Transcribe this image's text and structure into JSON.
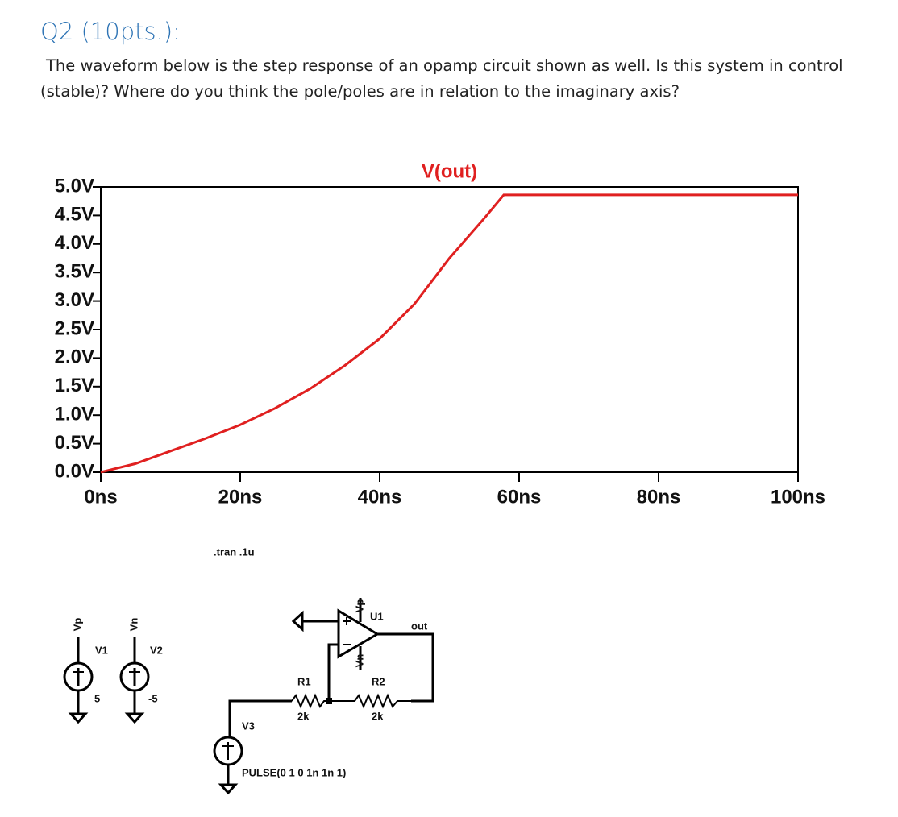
{
  "question": {
    "title": "Q2 (10pts.):",
    "text": "The waveform below is the step response of an opamp circuit shown as well.  Is this system in control (stable)? Where do you think the pole/poles are in relation to the imaginary axis?"
  },
  "chart_data": {
    "type": "line",
    "x": [
      0,
      5,
      10,
      15,
      20,
      25,
      30,
      35,
      40,
      45,
      50,
      55,
      57.8,
      60,
      80,
      100
    ],
    "series": [
      {
        "name": "V(out)",
        "color": "#e02020",
        "values": [
          0,
          0.15,
          0.37,
          0.59,
          0.83,
          1.12,
          1.46,
          1.87,
          2.34,
          2.95,
          3.75,
          4.45,
          4.86,
          4.86,
          4.86,
          4.86
        ]
      }
    ],
    "xlim": [
      0,
      100
    ],
    "xticks": [
      {
        "value": 0,
        "label": "0ns"
      },
      {
        "value": 20,
        "label": "20ns"
      },
      {
        "value": 40,
        "label": "40ns"
      },
      {
        "value": 60,
        "label": "60ns"
      },
      {
        "value": 80,
        "label": "80ns"
      },
      {
        "value": 100,
        "label": "100ns"
      }
    ],
    "ylim": [
      0,
      5
    ],
    "yticks": [
      {
        "value": 0,
        "label": "0.0V"
      },
      {
        "value": 0.5,
        "label": "0.5V"
      },
      {
        "value": 1,
        "label": "1.0V"
      },
      {
        "value": 1.5,
        "label": "1.5V"
      },
      {
        "value": 2,
        "label": "2.0V"
      },
      {
        "value": 2.5,
        "label": "2.5V"
      },
      {
        "value": 3,
        "label": "3.0V"
      },
      {
        "value": 3.5,
        "label": "3.5V"
      },
      {
        "value": 4,
        "label": "4.0V"
      },
      {
        "value": 4.5,
        "label": "4.5V"
      },
      {
        "value": 5,
        "label": "5.0V"
      }
    ],
    "grid": false
  },
  "schematic": {
    "directive": ".tran .1u",
    "v1": {
      "net": "Vp",
      "name": "V1",
      "value": "5"
    },
    "v2": {
      "net": "Vn",
      "name": "V2",
      "value": "-5"
    },
    "u1": {
      "name": "U1",
      "pos_supply": "Vp",
      "neg_supply": "Vn",
      "output": "out"
    },
    "r1": {
      "name": "R1",
      "value": "2k"
    },
    "r2": {
      "name": "R2",
      "value": "2k"
    },
    "v3": {
      "name": "V3",
      "value": "PULSE(0 1 0 1n 1n 1)"
    }
  }
}
